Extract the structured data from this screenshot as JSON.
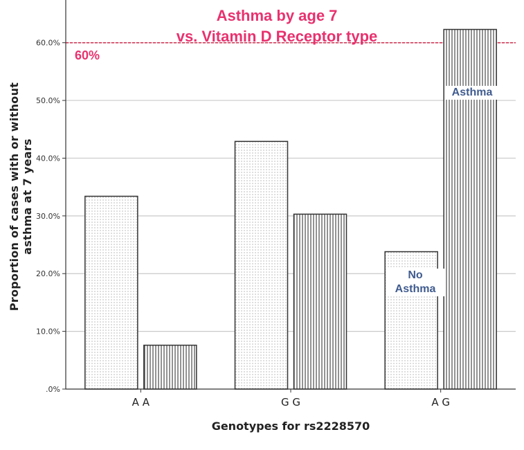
{
  "chart_data": {
    "type": "bar",
    "title_line1": "Asthma by age 7",
    "title_line2": "vs. Vitamin D Receptor type",
    "xlabel": "Genotypes for rs2228570",
    "ylabel": "Proportion of cases with or without asthma at 7 years",
    "categories": [
      "A A",
      "G G",
      "A G"
    ],
    "series": [
      {
        "name": "No Asthma",
        "values": [
          33.4,
          42.9,
          23.8
        ],
        "pattern": "dots"
      },
      {
        "name": "Asthma",
        "values": [
          7.6,
          30.3,
          62.3
        ],
        "pattern": "vertical-lines"
      }
    ],
    "ylim": [
      0,
      65
    ],
    "yticks": [
      0,
      10,
      20,
      30,
      40,
      50,
      60
    ],
    "ytick_labels": [
      ".0%",
      "10.0%",
      "20.0%",
      "30.0%",
      "40.0%",
      "50.0%",
      "60.0%"
    ],
    "grid": true,
    "reference_line": {
      "value": 60,
      "label": "60%",
      "color": "#e8316f",
      "style": "dashed"
    },
    "annotations": {
      "no_asthma": "No\nAsthma",
      "asthma": "Asthma"
    }
  }
}
